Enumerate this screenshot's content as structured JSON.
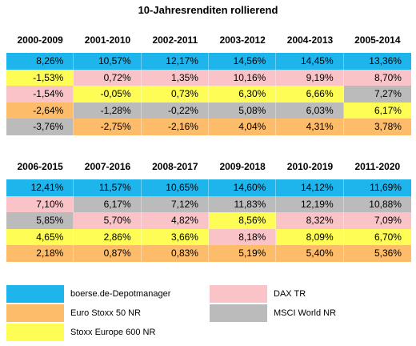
{
  "title": "10-Jahresrenditen rollierend",
  "colors": {
    "boerse": "#1eb4ec",
    "dax": "#f9c3c8",
    "stoxx600": "#fdfd55",
    "msci": "#bbbbbb",
    "eurostoxx": "#fdbc6a"
  },
  "chart_data": {
    "type": "table",
    "title": "10-Jahresrenditen rollierend",
    "blocks": [
      {
        "periods": [
          "2000-2009",
          "2001-2010",
          "2002-2011",
          "2003-2012",
          "2004-2013",
          "2005-2014"
        ],
        "rows": [
          [
            {
              "v": "8,26%",
              "c": "boerse"
            },
            {
              "v": "10,57%",
              "c": "boerse"
            },
            {
              "v": "12,17%",
              "c": "boerse"
            },
            {
              "v": "14,56%",
              "c": "boerse"
            },
            {
              "v": "14,45%",
              "c": "boerse"
            },
            {
              "v": "13,36%",
              "c": "boerse"
            }
          ],
          [
            {
              "v": "-1,53%",
              "c": "stoxx600"
            },
            {
              "v": "0,72%",
              "c": "dax"
            },
            {
              "v": "1,35%",
              "c": "dax"
            },
            {
              "v": "10,16%",
              "c": "dax"
            },
            {
              "v": "9,19%",
              "c": "dax"
            },
            {
              "v": "8,70%",
              "c": "dax"
            }
          ],
          [
            {
              "v": "-1,54%",
              "c": "dax"
            },
            {
              "v": "-0,05%",
              "c": "stoxx600"
            },
            {
              "v": "0,73%",
              "c": "stoxx600"
            },
            {
              "v": "6,30%",
              "c": "stoxx600"
            },
            {
              "v": "6,66%",
              "c": "stoxx600"
            },
            {
              "v": "7,27%",
              "c": "msci"
            }
          ],
          [
            {
              "v": "-2,64%",
              "c": "eurostoxx"
            },
            {
              "v": "-1,28%",
              "c": "msci"
            },
            {
              "v": "-0,22%",
              "c": "msci"
            },
            {
              "v": "5,08%",
              "c": "msci"
            },
            {
              "v": "6,03%",
              "c": "msci"
            },
            {
              "v": "6,17%",
              "c": "stoxx600"
            }
          ],
          [
            {
              "v": "-3,76%",
              "c": "msci"
            },
            {
              "v": "-2,75%",
              "c": "eurostoxx"
            },
            {
              "v": "-2,16%",
              "c": "eurostoxx"
            },
            {
              "v": "4,04%",
              "c": "eurostoxx"
            },
            {
              "v": "4,31%",
              "c": "eurostoxx"
            },
            {
              "v": "3,78%",
              "c": "eurostoxx"
            }
          ]
        ]
      },
      {
        "periods": [
          "2006-2015",
          "2007-2016",
          "2008-2017",
          "2009-2018",
          "2010-2019",
          "2011-2020"
        ],
        "rows": [
          [
            {
              "v": "12,41%",
              "c": "boerse"
            },
            {
              "v": "11,57%",
              "c": "boerse"
            },
            {
              "v": "10,65%",
              "c": "boerse"
            },
            {
              "v": "14,60%",
              "c": "boerse"
            },
            {
              "v": "14,12%",
              "c": "boerse"
            },
            {
              "v": "11,69%",
              "c": "boerse"
            }
          ],
          [
            {
              "v": "7,10%",
              "c": "dax"
            },
            {
              "v": "6,17%",
              "c": "msci"
            },
            {
              "v": "7,12%",
              "c": "msci"
            },
            {
              "v": "11,83%",
              "c": "msci"
            },
            {
              "v": "12,19%",
              "c": "msci"
            },
            {
              "v": "10,88%",
              "c": "msci"
            }
          ],
          [
            {
              "v": "5,85%",
              "c": "msci"
            },
            {
              "v": "5,70%",
              "c": "dax"
            },
            {
              "v": "4,82%",
              "c": "dax"
            },
            {
              "v": "8,56%",
              "c": "stoxx600"
            },
            {
              "v": "8,32%",
              "c": "dax"
            },
            {
              "v": "7,09%",
              "c": "dax"
            }
          ],
          [
            {
              "v": "4,65%",
              "c": "stoxx600"
            },
            {
              "v": "2,86%",
              "c": "stoxx600"
            },
            {
              "v": "3,66%",
              "c": "stoxx600"
            },
            {
              "v": "8,18%",
              "c": "dax"
            },
            {
              "v": "8,09%",
              "c": "stoxx600"
            },
            {
              "v": "6,70%",
              "c": "stoxx600"
            }
          ],
          [
            {
              "v": "2,18%",
              "c": "eurostoxx"
            },
            {
              "v": "0,87%",
              "c": "eurostoxx"
            },
            {
              "v": "0,83%",
              "c": "eurostoxx"
            },
            {
              "v": "5,19%",
              "c": "eurostoxx"
            },
            {
              "v": "5,40%",
              "c": "eurostoxx"
            },
            {
              "v": "5,36%",
              "c": "eurostoxx"
            }
          ]
        ]
      }
    ],
    "legend": [
      {
        "key": "boerse",
        "label": "boerse.de-Depotmanager"
      },
      {
        "key": "eurostoxx",
        "label": "Euro Stoxx 50 NR"
      },
      {
        "key": "stoxx600",
        "label": "Stoxx Europe 600 NR"
      },
      {
        "key": "dax",
        "label": "DAX TR"
      },
      {
        "key": "msci",
        "label": "MSCI World NR"
      }
    ]
  }
}
